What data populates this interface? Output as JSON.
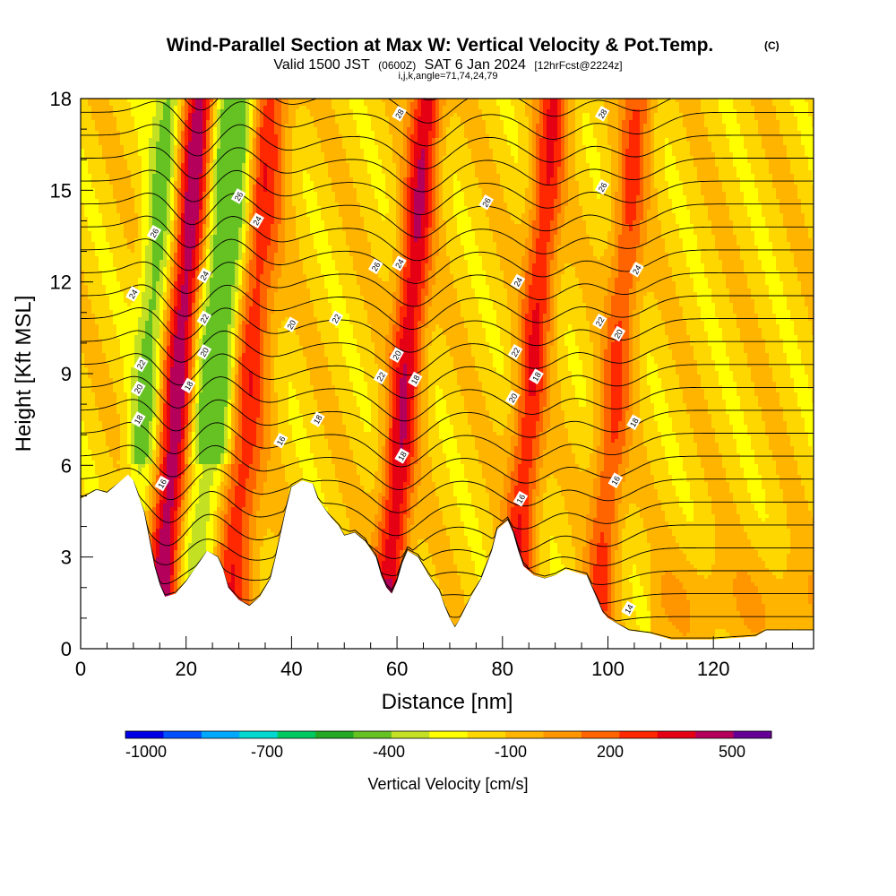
{
  "title": {
    "main": "Wind-Parallel Section at Max W: Vertical Velocity & Pot.Temp.",
    "copyright": "(C)",
    "valid_prefix": "Valid 1500 JST",
    "valid_utc": "(0600Z)",
    "valid_date": "SAT 6 Jan 2024",
    "forecast": "[12hrFcst@2224z]",
    "indices": "i,j,k,angle=71,74,24,79"
  },
  "chart_data": {
    "type": "heatmap",
    "xlabel": "Distance [nm]",
    "ylabel": "Height [Kft MSL]",
    "xlim": [
      0,
      139
    ],
    "ylim": [
      0,
      18
    ],
    "x_ticks": [
      0,
      20,
      40,
      60,
      80,
      100,
      120
    ],
    "y_ticks": [
      0,
      3,
      6,
      9,
      12,
      15,
      18
    ],
    "terrain": [
      [
        0,
        4.9
      ],
      [
        3,
        5.2
      ],
      [
        5,
        5.1
      ],
      [
        7,
        5.4
      ],
      [
        9,
        5.7
      ],
      [
        10,
        5.5
      ],
      [
        11,
        5.0
      ],
      [
        12,
        4.5
      ],
      [
        13,
        3.6
      ],
      [
        14,
        2.7
      ],
      [
        15,
        2.1
      ],
      [
        16,
        1.7
      ],
      [
        18,
        1.8
      ],
      [
        20,
        2.2
      ],
      [
        22,
        2.7
      ],
      [
        24,
        3.2
      ],
      [
        26,
        3.0
      ],
      [
        27,
        2.6
      ],
      [
        28,
        2.0
      ],
      [
        30,
        1.6
      ],
      [
        32,
        1.4
      ],
      [
        34,
        1.7
      ],
      [
        36,
        2.3
      ],
      [
        37,
        3.0
      ],
      [
        38,
        3.8
      ],
      [
        39,
        4.6
      ],
      [
        40,
        5.3
      ],
      [
        42,
        5.5
      ],
      [
        44,
        5.4
      ],
      [
        45,
        4.9
      ],
      [
        47,
        4.4
      ],
      [
        49,
        4.0
      ],
      [
        50,
        3.7
      ],
      [
        52,
        3.8
      ],
      [
        54,
        3.5
      ],
      [
        56,
        3.0
      ],
      [
        57,
        2.4
      ],
      [
        58,
        2.0
      ],
      [
        59,
        1.8
      ],
      [
        60,
        2.2
      ],
      [
        61,
        2.8
      ],
      [
        62,
        3.2
      ],
      [
        64,
        3.0
      ],
      [
        66,
        2.4
      ],
      [
        68,
        1.9
      ],
      [
        69,
        1.4
      ],
      [
        70,
        1.0
      ],
      [
        71,
        0.7
      ],
      [
        72,
        1.0
      ],
      [
        74,
        1.7
      ],
      [
        76,
        2.3
      ],
      [
        78,
        3.2
      ],
      [
        79,
        3.9
      ],
      [
        81,
        4.2
      ],
      [
        82,
        3.8
      ],
      [
        83,
        3.2
      ],
      [
        84,
        2.7
      ],
      [
        86,
        2.4
      ],
      [
        88,
        2.3
      ],
      [
        90,
        2.4
      ],
      [
        92,
        2.6
      ],
      [
        96,
        2.4
      ],
      [
        97,
        2.0
      ],
      [
        98,
        1.6
      ],
      [
        99,
        1.2
      ],
      [
        100,
        1.0
      ],
      [
        102,
        0.8
      ],
      [
        104,
        0.6
      ],
      [
        108,
        0.5
      ],
      [
        112,
        0.3
      ],
      [
        120,
        0.3
      ],
      [
        128,
        0.4
      ],
      [
        130,
        0.6
      ],
      [
        139,
        0.6
      ]
    ],
    "colorbar": {
      "label": "Vertical Velocity [cm/s]",
      "tick_labels": [
        "-1000",
        "-700",
        "-400",
        "-100",
        "200",
        "500"
      ],
      "colors": [
        "#0000e6",
        "#0050ff",
        "#00a8ff",
        "#00d8d0",
        "#00c860",
        "#22a822",
        "#66c222",
        "#c4e022",
        "#ffff00",
        "#ffd700",
        "#ffb400",
        "#ff9600",
        "#ff6400",
        "#ff2800",
        "#e60014",
        "#b4005a",
        "#640096"
      ]
    },
    "updraft_cores": [
      {
        "x": 16,
        "w": 3,
        "intensity": 3
      },
      {
        "x": 29,
        "w": 4,
        "intensity": 2
      },
      {
        "x": 59,
        "w": 3,
        "intensity": 2.5
      },
      {
        "x": 83,
        "w": 3,
        "intensity": 2
      },
      {
        "x": 99,
        "w": 3,
        "intensity": 1.6
      }
    ],
    "downdraft_cores": [
      {
        "x": 10,
        "w": 2.5,
        "intensity": 1.6
      },
      {
        "x": 22,
        "w": 3.5,
        "intensity": 1.8
      },
      {
        "x": 25,
        "w": 3,
        "intensity": 1.2
      }
    ],
    "contour_labels": [
      {
        "text": "16",
        "x": 15.5,
        "y": 5.4
      },
      {
        "text": "18",
        "x": 11,
        "y": 7.5
      },
      {
        "text": "20",
        "x": 11,
        "y": 8.5
      },
      {
        "text": "22",
        "x": 11.5,
        "y": 9.3
      },
      {
        "text": "24",
        "x": 10,
        "y": 11.6
      },
      {
        "text": "26",
        "x": 14,
        "y": 13.6
      },
      {
        "text": "18",
        "x": 20.5,
        "y": 8.6
      },
      {
        "text": "20",
        "x": 23.5,
        "y": 9.7
      },
      {
        "text": "22",
        "x": 23.5,
        "y": 10.8
      },
      {
        "text": "24",
        "x": 23.5,
        "y": 12.2
      },
      {
        "text": "24",
        "x": 33.5,
        "y": 14.0
      },
      {
        "text": "26",
        "x": 30,
        "y": 14.8
      },
      {
        "text": "16",
        "x": 38,
        "y": 6.8
      },
      {
        "text": "18",
        "x": 45,
        "y": 7.5
      },
      {
        "text": "20",
        "x": 40,
        "y": 10.6
      },
      {
        "text": "22",
        "x": 48.5,
        "y": 10.8
      },
      {
        "text": "26",
        "x": 56,
        "y": 12.5
      },
      {
        "text": "24",
        "x": 60.5,
        "y": 12.6
      },
      {
        "text": "22",
        "x": 57,
        "y": 8.9
      },
      {
        "text": "20",
        "x": 60,
        "y": 9.6
      },
      {
        "text": "18",
        "x": 61,
        "y": 6.3
      },
      {
        "text": "18",
        "x": 63.5,
        "y": 8.8
      },
      {
        "text": "28",
        "x": 60.5,
        "y": 17.5
      },
      {
        "text": "26",
        "x": 77,
        "y": 14.6
      },
      {
        "text": "24",
        "x": 83,
        "y": 12.0
      },
      {
        "text": "22",
        "x": 82.5,
        "y": 9.7
      },
      {
        "text": "20",
        "x": 82,
        "y": 8.2
      },
      {
        "text": "18",
        "x": 86.5,
        "y": 8.9
      },
      {
        "text": "16",
        "x": 83.5,
        "y": 4.9
      },
      {
        "text": "28",
        "x": 99,
        "y": 17.5
      },
      {
        "text": "26",
        "x": 99,
        "y": 15.1
      },
      {
        "text": "24",
        "x": 105.5,
        "y": 12.4
      },
      {
        "text": "22",
        "x": 98.5,
        "y": 10.7
      },
      {
        "text": "20",
        "x": 102,
        "y": 10.3
      },
      {
        "text": "18",
        "x": 105,
        "y": 7.4
      },
      {
        "text": "16",
        "x": 101.5,
        "y": 5.5
      },
      {
        "text": "14",
        "x": 104,
        "y": 1.3
      }
    ]
  }
}
